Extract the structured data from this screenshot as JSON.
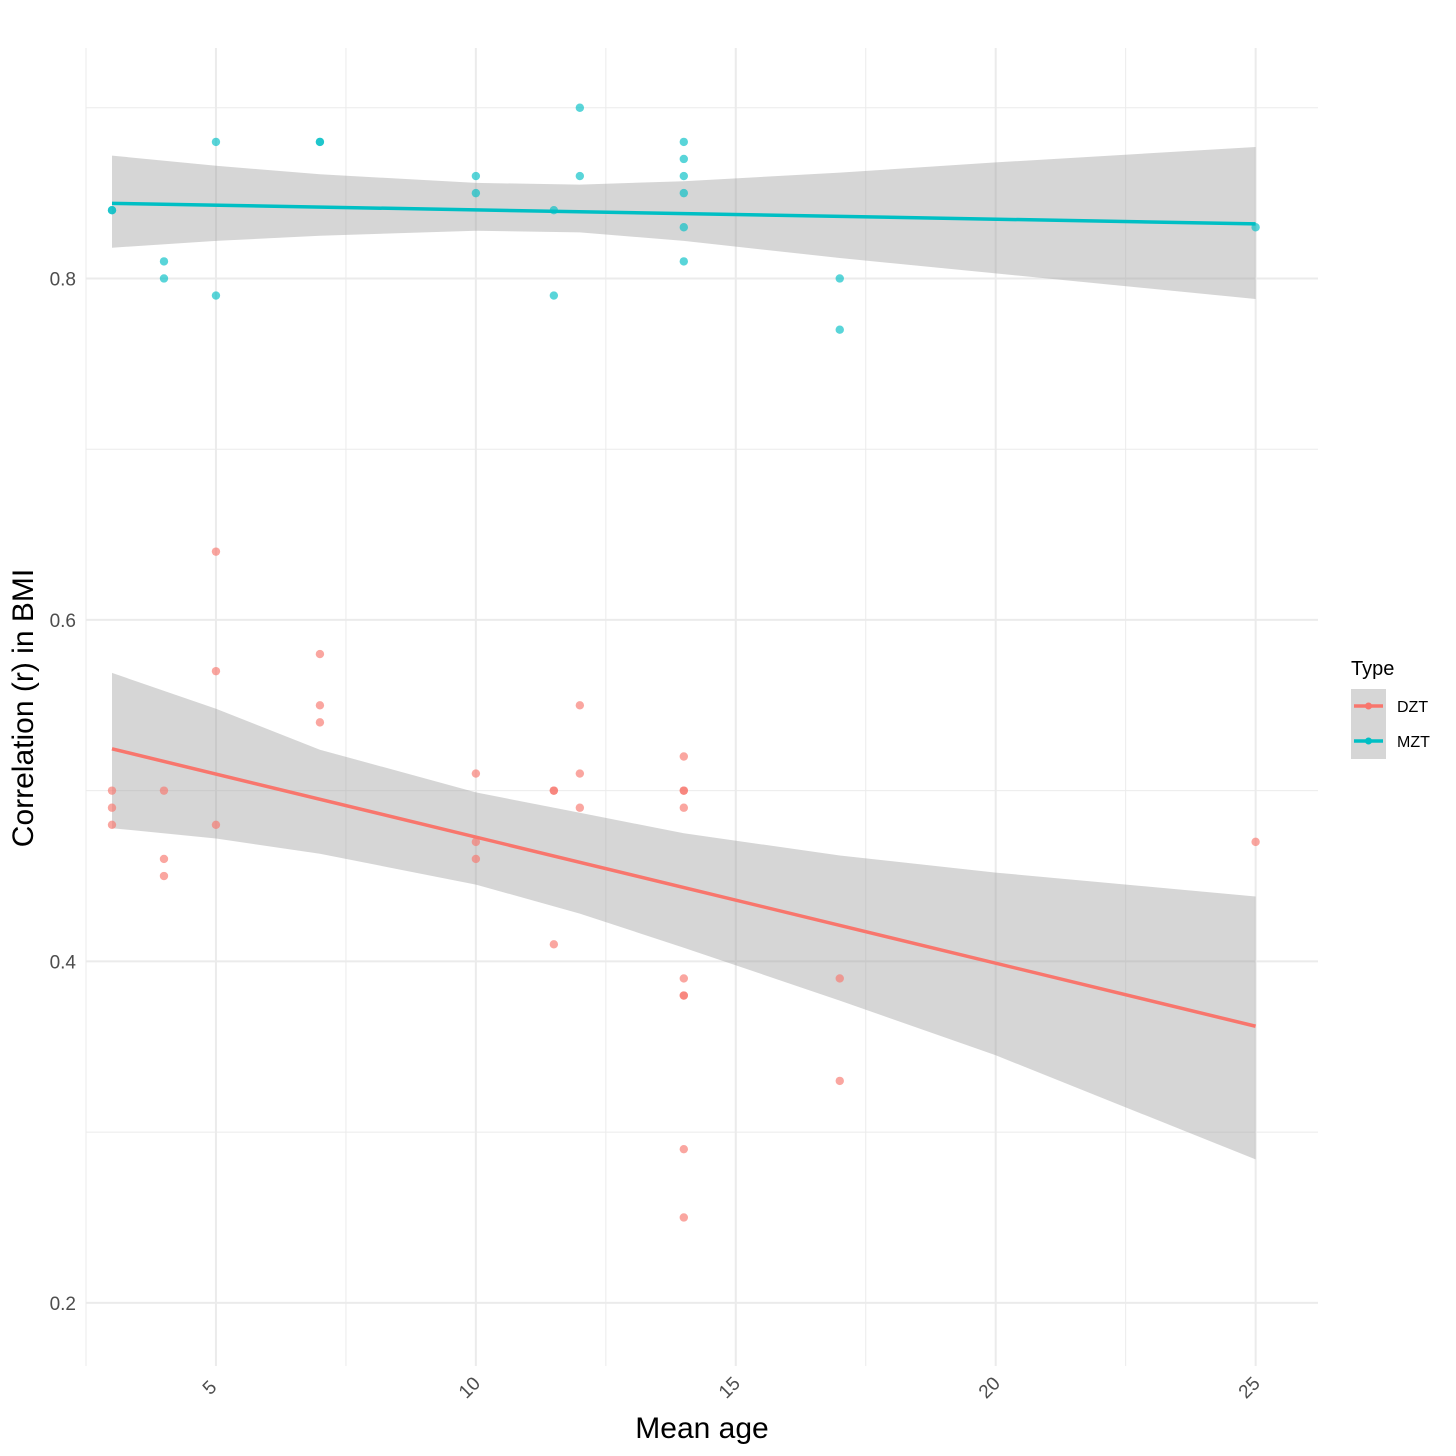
{
  "chart_data": {
    "type": "scatter",
    "title": "",
    "xlabel": "Mean age",
    "ylabel": "Correlation (r) in BMI",
    "xlim": [
      2.5,
      26.2
    ],
    "ylim": [
      0.163,
      0.935
    ],
    "x_ticks": [
      5,
      10,
      15,
      20,
      25
    ],
    "x_tick_labels": [
      "5",
      "10",
      "15",
      "20",
      "25"
    ],
    "y_ticks": [
      0.2,
      0.4,
      0.6,
      0.8
    ],
    "y_tick_labels": [
      "0.2",
      "0.4",
      "0.6",
      "0.8"
    ],
    "grid": true,
    "legend": {
      "title": "Type",
      "position": "right"
    },
    "colors": {
      "DZT": "#F8766D",
      "MZT": "#00BFC4",
      "band": "#999999"
    },
    "series": [
      {
        "name": "DZT",
        "points": [
          [
            3,
            0.5
          ],
          [
            3,
            0.49
          ],
          [
            3,
            0.48
          ],
          [
            4,
            0.5
          ],
          [
            4,
            0.46
          ],
          [
            4,
            0.45
          ],
          [
            5,
            0.64
          ],
          [
            5,
            0.57
          ],
          [
            5,
            0.48
          ],
          [
            7,
            0.58
          ],
          [
            7,
            0.55
          ],
          [
            7,
            0.54
          ],
          [
            10,
            0.51
          ],
          [
            10,
            0.47
          ],
          [
            10,
            0.46
          ],
          [
            11.5,
            0.5
          ],
          [
            11.5,
            0.5
          ],
          [
            11.5,
            0.41
          ],
          [
            12,
            0.55
          ],
          [
            12,
            0.51
          ],
          [
            12,
            0.49
          ],
          [
            14,
            0.52
          ],
          [
            14,
            0.5
          ],
          [
            14,
            0.5
          ],
          [
            14,
            0.49
          ],
          [
            14,
            0.39
          ],
          [
            14,
            0.38
          ],
          [
            14,
            0.38
          ],
          [
            14,
            0.29
          ],
          [
            14,
            0.25
          ],
          [
            17,
            0.39
          ],
          [
            17,
            0.33
          ],
          [
            25,
            0.47
          ]
        ],
        "fit": {
          "x": [
            3,
            25
          ],
          "y": [
            0.5245,
            0.362
          ]
        },
        "band": {
          "x": [
            3,
            5,
            7,
            10,
            12,
            14,
            17,
            20,
            25
          ],
          "upper": [
            0.569,
            0.548,
            0.524,
            0.499,
            0.487,
            0.475,
            0.462,
            0.452,
            0.438
          ],
          "lower": [
            0.478,
            0.472,
            0.463,
            0.445,
            0.428,
            0.408,
            0.377,
            0.345,
            0.284
          ]
        }
      },
      {
        "name": "MZT",
        "points": [
          [
            3,
            0.84
          ],
          [
            3,
            0.84
          ],
          [
            4,
            0.81
          ],
          [
            4,
            0.8
          ],
          [
            5,
            0.88
          ],
          [
            5,
            0.79
          ],
          [
            7,
            0.88
          ],
          [
            7,
            0.88
          ],
          [
            10,
            0.86
          ],
          [
            10,
            0.85
          ],
          [
            11.5,
            0.84
          ],
          [
            11.5,
            0.79
          ],
          [
            12,
            0.9
          ],
          [
            12,
            0.86
          ],
          [
            14,
            0.88
          ],
          [
            14,
            0.87
          ],
          [
            14,
            0.86
          ],
          [
            14,
            0.85
          ],
          [
            14,
            0.83
          ],
          [
            14,
            0.81
          ],
          [
            17,
            0.8
          ],
          [
            17,
            0.77
          ],
          [
            25,
            0.83
          ]
        ],
        "fit": {
          "x": [
            3,
            25
          ],
          "y": [
            0.844,
            0.832
          ]
        },
        "band": {
          "x": [
            3,
            5,
            7,
            10,
            12,
            14,
            17,
            20,
            25
          ],
          "upper": [
            0.872,
            0.866,
            0.861,
            0.856,
            0.855,
            0.857,
            0.862,
            0.868,
            0.877
          ],
          "lower": [
            0.818,
            0.822,
            0.825,
            0.828,
            0.827,
            0.822,
            0.812,
            0.803,
            0.788
          ]
        }
      }
    ]
  }
}
